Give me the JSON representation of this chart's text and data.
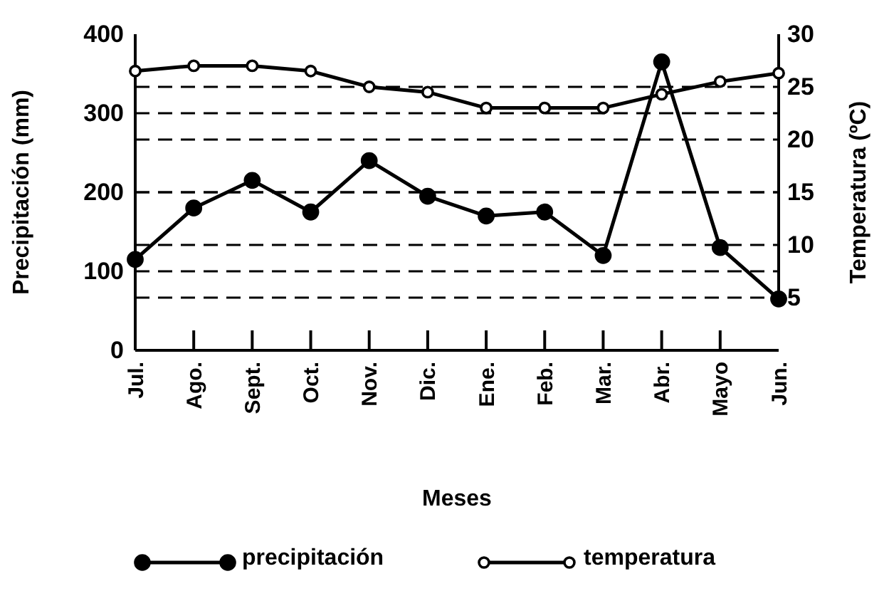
{
  "chart_data": {
    "type": "line",
    "xlabel": "Meses",
    "ylabel": "Precipitación (mm)",
    "y2label": "Temperatura (ºC)",
    "categories": [
      "Jul.",
      "Ago.",
      "Sept.",
      "Oct.",
      "Nov.",
      "Dic.",
      "Ene.",
      "Feb.",
      "Mar.",
      "Abr.",
      "Mayo",
      "Jun."
    ],
    "series": [
      {
        "name": "precipitación",
        "color": "#000000",
        "values": [
          115,
          180,
          215,
          175,
          240,
          195,
          170,
          175,
          120,
          365,
          130,
          65
        ]
      },
      {
        "name": "temperatura",
        "color": "#000000",
        "axis": "y2",
        "values": [
          26.5,
          27,
          27,
          26.5,
          25,
          24.5,
          23,
          23,
          23,
          24.3,
          25.5,
          26.3
        ]
      }
    ],
    "ylim": [
      0,
      400
    ],
    "yticks": [
      0,
      100,
      200,
      300,
      400
    ],
    "y2lim": [
      0,
      30
    ],
    "y2ticks": [
      5,
      10,
      15,
      20,
      25,
      30
    ],
    "grid": "y",
    "legend": "bottom",
    "marker": "circle",
    "line_style": "solid"
  }
}
